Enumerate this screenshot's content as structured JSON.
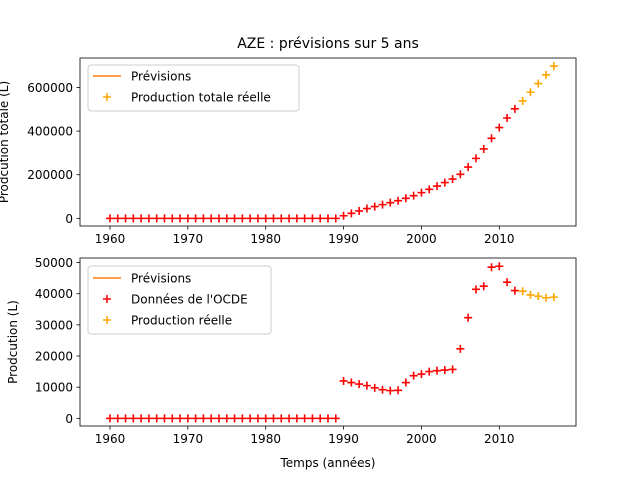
{
  "chart_data": [
    {
      "type": "scatter",
      "title": "AZE : prévisions sur 5 ans",
      "xlabel": "",
      "ylabel": "Prodcution totale (L)",
      "xlim": [
        1956.15,
        2019.85
      ],
      "ylim": [
        -35000,
        735000
      ],
      "xticks": [
        1960,
        1970,
        1980,
        1990,
        2000,
        2010
      ],
      "yticks": [
        0,
        200000,
        400000,
        600000
      ],
      "legend_position": "upper left",
      "series": [
        {
          "name": "Prévisions",
          "kind": "line",
          "color": "#ff7f0e",
          "x": [],
          "y": []
        },
        {
          "name": "Production totale réelle",
          "kind": "marker",
          "marker": "plus",
          "color": "#ffa500",
          "x": [
            2013,
            2014,
            2015,
            2016,
            2017
          ],
          "y": [
            538000,
            578000,
            618000,
            658000,
            698000
          ]
        },
        {
          "name": "",
          "kind": "marker",
          "marker": "plus",
          "color": "#ff0000",
          "x": [
            1960,
            1961,
            1962,
            1963,
            1964,
            1965,
            1966,
            1967,
            1968,
            1969,
            1970,
            1971,
            1972,
            1973,
            1974,
            1975,
            1976,
            1977,
            1978,
            1979,
            1980,
            1981,
            1982,
            1983,
            1984,
            1985,
            1986,
            1987,
            1988,
            1989,
            1990,
            1991,
            1992,
            1993,
            1994,
            1995,
            1996,
            1997,
            1998,
            1999,
            2000,
            2001,
            2002,
            2003,
            2004,
            2005,
            2006,
            2007,
            2008,
            2009,
            2010,
            2011,
            2012
          ],
          "y": [
            0,
            0,
            0,
            0,
            0,
            0,
            0,
            0,
            0,
            0,
            0,
            0,
            0,
            0,
            0,
            0,
            0,
            0,
            0,
            0,
            0,
            0,
            0,
            0,
            0,
            0,
            0,
            0,
            0,
            0,
            12000,
            23000,
            34000,
            45000,
            54000,
            63000,
            72000,
            81000,
            92000,
            104000,
            118000,
            133000,
            148000,
            164000,
            180000,
            202000,
            235000,
            275000,
            318000,
            367000,
            416000,
            460000,
            502000
          ]
        }
      ]
    },
    {
      "type": "scatter",
      "title": "",
      "xlabel": "Temps (années)",
      "ylabel": "Prodcution (L)",
      "xlim": [
        1956.15,
        2019.85
      ],
      "ylim": [
        -2450,
        51450
      ],
      "xticks": [
        1960,
        1970,
        1980,
        1990,
        2000,
        2010
      ],
      "yticks": [
        0,
        10000,
        20000,
        30000,
        40000,
        50000
      ],
      "legend_position": "upper left",
      "series": [
        {
          "name": "Prévisions",
          "kind": "line",
          "color": "#ff7f0e",
          "x": [],
          "y": []
        },
        {
          "name": "Données de l'OCDE",
          "kind": "marker",
          "marker": "plus",
          "color": "#ff0000",
          "x": [
            1960,
            1961,
            1962,
            1963,
            1964,
            1965,
            1966,
            1967,
            1968,
            1969,
            1970,
            1971,
            1972,
            1973,
            1974,
            1975,
            1976,
            1977,
            1978,
            1979,
            1980,
            1981,
            1982,
            1983,
            1984,
            1985,
            1986,
            1987,
            1988,
            1989,
            1990,
            1991,
            1992,
            1993,
            1994,
            1995,
            1996,
            1997,
            1998,
            1999,
            2000,
            2001,
            2002,
            2003,
            2004,
            2005,
            2006,
            2007,
            2008,
            2009,
            2010,
            2011,
            2012
          ],
          "y": [
            0,
            0,
            0,
            0,
            0,
            0,
            0,
            0,
            0,
            0,
            0,
            0,
            0,
            0,
            0,
            0,
            0,
            0,
            0,
            0,
            0,
            0,
            0,
            0,
            0,
            0,
            0,
            0,
            0,
            0,
            12000,
            11500,
            11000,
            10500,
            9800,
            9200,
            8900,
            9000,
            11500,
            13700,
            14200,
            15000,
            15300,
            15500,
            15700,
            22300,
            32300,
            41400,
            42400,
            48500,
            48800,
            43700,
            41000
          ]
        },
        {
          "name": "Production réelle",
          "kind": "marker",
          "marker": "plus",
          "color": "#ffa500",
          "x": [
            2013,
            2014,
            2015,
            2016,
            2017
          ],
          "y": [
            40800,
            39600,
            39200,
            38700,
            38900
          ]
        }
      ]
    }
  ]
}
